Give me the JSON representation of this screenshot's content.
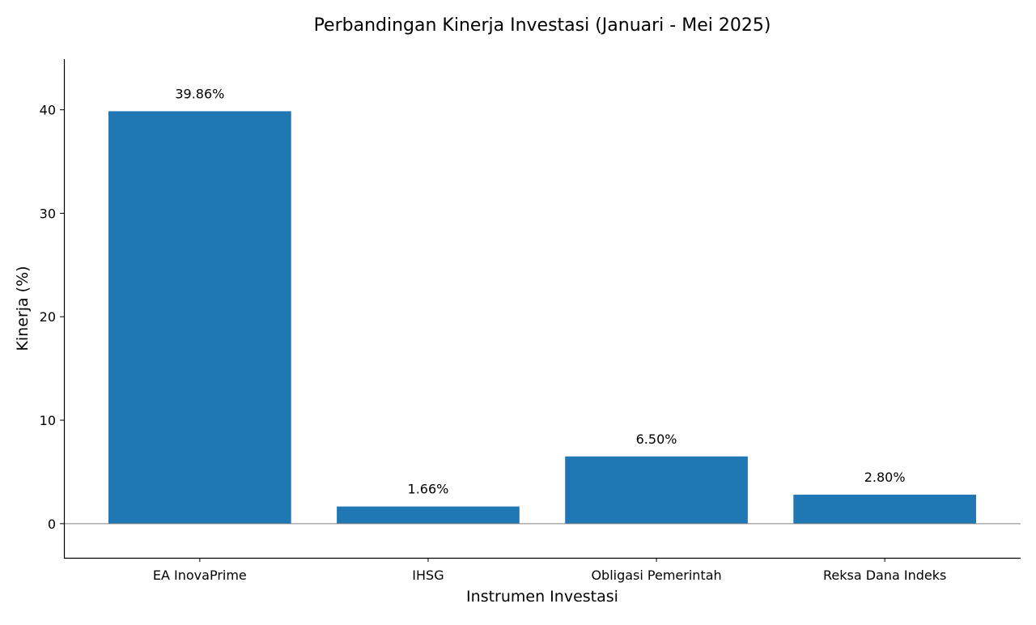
{
  "chart_data": {
    "type": "bar",
    "title": "Perbandingan Kinerja Investasi (Januari - Mei 2025)",
    "xlabel": "Instrumen Investasi",
    "ylabel": "Kinerja (%)",
    "categories": [
      "EA InovaPrime",
      "IHSG",
      "Obligasi Pemerintah",
      "Reksa Dana Indeks"
    ],
    "values": [
      39.86,
      1.66,
      6.5,
      2.8
    ],
    "data_labels": [
      "39.86%",
      "1.66%",
      "6.50%",
      "2.80%"
    ],
    "yticks": [
      0,
      10,
      20,
      30,
      40
    ],
    "ylim": [
      -3.3,
      44.9
    ],
    "grid": false,
    "zero_line": true,
    "colors": {
      "bar": "#1f77b4",
      "zero_line": "#808080",
      "axis": "#000000"
    }
  }
}
